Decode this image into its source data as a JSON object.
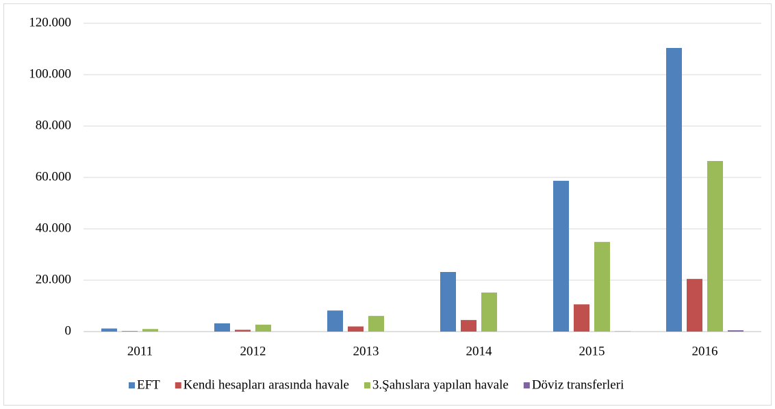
{
  "chart_data": {
    "type": "bar",
    "categories": [
      "2011",
      "2012",
      "2013",
      "2014",
      "2015",
      "2016"
    ],
    "series": [
      {
        "name": "EFT",
        "color": "#4f81bd",
        "values": [
          1200,
          3200,
          8200,
          23200,
          58700,
          110400
        ]
      },
      {
        "name": "Kendi hesapları arasında havale",
        "color": "#c0504d",
        "values": [
          200,
          700,
          2000,
          4500,
          10600,
          20500
        ]
      },
      {
        "name": "3.Şahıslara yapılan havale",
        "color": "#9bbb59",
        "values": [
          1000,
          2700,
          6100,
          15200,
          34900,
          66400
        ]
      },
      {
        "name": "Döviz transferleri",
        "color": "#8064a2",
        "values": [
          0,
          0,
          0,
          0,
          100,
          500
        ]
      }
    ],
    "ylim": [
      0,
      120000
    ],
    "yticks": [
      0,
      {
        "value": 20000,
        "label": "20.000"
      },
      {
        "value": 40000,
        "label": "40.000"
      },
      {
        "value": 60000,
        "label": "60.000"
      },
      {
        "value": 80000,
        "label": "80.000"
      },
      {
        "value": 100000,
        "label": "100.000"
      },
      {
        "value": 120000,
        "label": "120.000"
      }
    ],
    "grid": true,
    "legend": "bottom"
  }
}
